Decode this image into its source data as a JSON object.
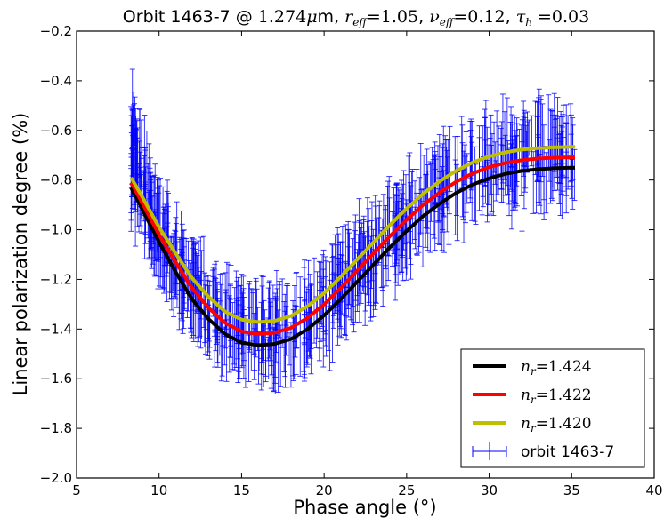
{
  "chart_data": {
    "type": "line",
    "title": {
      "prefix": "Orbit 1463-7 @ ",
      "wavelength": "1.274",
      "mu": "μ",
      "unit": "m",
      "sep": ", ",
      "r_sym": "r",
      "r_sub": "eff",
      "r_val": "=1.05",
      "nu_sym": "ν",
      "nu_sub": "eff",
      "nu_val": "=0.12",
      "tau_sym": "τ",
      "tau_sub": "h",
      "tau_val": " =0.03"
    },
    "xlabel": "Phase angle (°)",
    "ylabel": "Linear polarization degree (%)",
    "xlim": [
      5,
      40
    ],
    "ylim": [
      -2.0,
      -0.2
    ],
    "xticks": [
      5,
      10,
      15,
      20,
      25,
      30,
      35,
      40
    ],
    "yticks": [
      -2.0,
      -1.8,
      -1.6,
      -1.4,
      -1.2,
      -1.0,
      -0.8,
      -0.6,
      -0.4,
      -0.2
    ],
    "xtick_labels": [
      "5",
      "10",
      "15",
      "20",
      "25",
      "30",
      "35",
      "40"
    ],
    "ytick_labels": [
      "−2.0",
      "−1.8",
      "−1.6",
      "−1.4",
      "−1.2",
      "−1.0",
      "−0.8",
      "−0.6",
      "−0.4",
      "−0.2"
    ],
    "grid": false,
    "legend_position": "lower-right",
    "series": [
      {
        "kind": "line",
        "name_sym": "n",
        "name_sub": "r",
        "name_val": "=1.424",
        "color": "#000000",
        "x": [
          8.3,
          9.0,
          10.0,
          11.0,
          12.0,
          13.0,
          14.0,
          15.0,
          16.0,
          17.0,
          18.0,
          19.0,
          20.0,
          21.0,
          22.0,
          23.0,
          24.0,
          25.0,
          26.0,
          27.0,
          28.0,
          29.0,
          30.0,
          31.0,
          32.0,
          33.0,
          34.0,
          35.2
        ],
        "y": [
          -0.83,
          -0.92,
          -1.05,
          -1.17,
          -1.28,
          -1.36,
          -1.42,
          -1.455,
          -1.465,
          -1.46,
          -1.44,
          -1.4,
          -1.345,
          -1.28,
          -1.21,
          -1.14,
          -1.07,
          -1.005,
          -0.945,
          -0.895,
          -0.852,
          -0.818,
          -0.793,
          -0.775,
          -0.763,
          -0.756,
          -0.752,
          -0.75
        ]
      },
      {
        "kind": "line",
        "name_sym": "n",
        "name_sub": "r",
        "name_val": "=1.422",
        "color": "#ff0000",
        "x": [
          8.3,
          9.0,
          10.0,
          11.0,
          12.0,
          13.0,
          14.0,
          15.0,
          16.0,
          17.0,
          18.0,
          19.0,
          20.0,
          21.0,
          22.0,
          23.0,
          24.0,
          25.0,
          26.0,
          27.0,
          28.0,
          29.0,
          30.0,
          31.0,
          32.0,
          33.0,
          34.0,
          35.2
        ],
        "y": [
          -0.81,
          -0.895,
          -1.02,
          -1.13,
          -1.235,
          -1.315,
          -1.375,
          -1.41,
          -1.42,
          -1.415,
          -1.395,
          -1.355,
          -1.3,
          -1.235,
          -1.165,
          -1.095,
          -1.025,
          -0.96,
          -0.9,
          -0.85,
          -0.807,
          -0.773,
          -0.748,
          -0.731,
          -0.72,
          -0.713,
          -0.71,
          -0.708
        ]
      },
      {
        "kind": "line",
        "name_sym": "n",
        "name_sub": "r",
        "name_val": "=1.420",
        "color": "#bfbf00",
        "x": [
          8.3,
          9.0,
          10.0,
          11.0,
          12.0,
          13.0,
          14.0,
          15.0,
          16.0,
          17.0,
          18.0,
          19.0,
          20.0,
          21.0,
          22.0,
          23.0,
          24.0,
          25.0,
          26.0,
          27.0,
          28.0,
          29.0,
          30.0,
          31.0,
          32.0,
          33.0,
          34.0,
          35.2
        ],
        "y": [
          -0.79,
          -0.87,
          -0.99,
          -1.095,
          -1.195,
          -1.27,
          -1.33,
          -1.362,
          -1.372,
          -1.367,
          -1.347,
          -1.308,
          -1.255,
          -1.19,
          -1.12,
          -1.05,
          -0.98,
          -0.915,
          -0.855,
          -0.805,
          -0.763,
          -0.729,
          -0.705,
          -0.688,
          -0.677,
          -0.671,
          -0.668,
          -0.666
        ]
      },
      {
        "kind": "errorbar",
        "name": "orbit 1463-7",
        "color": "#0000ff",
        "x_range": [
          8.3,
          35.2
        ],
        "count": 700
      }
    ]
  }
}
